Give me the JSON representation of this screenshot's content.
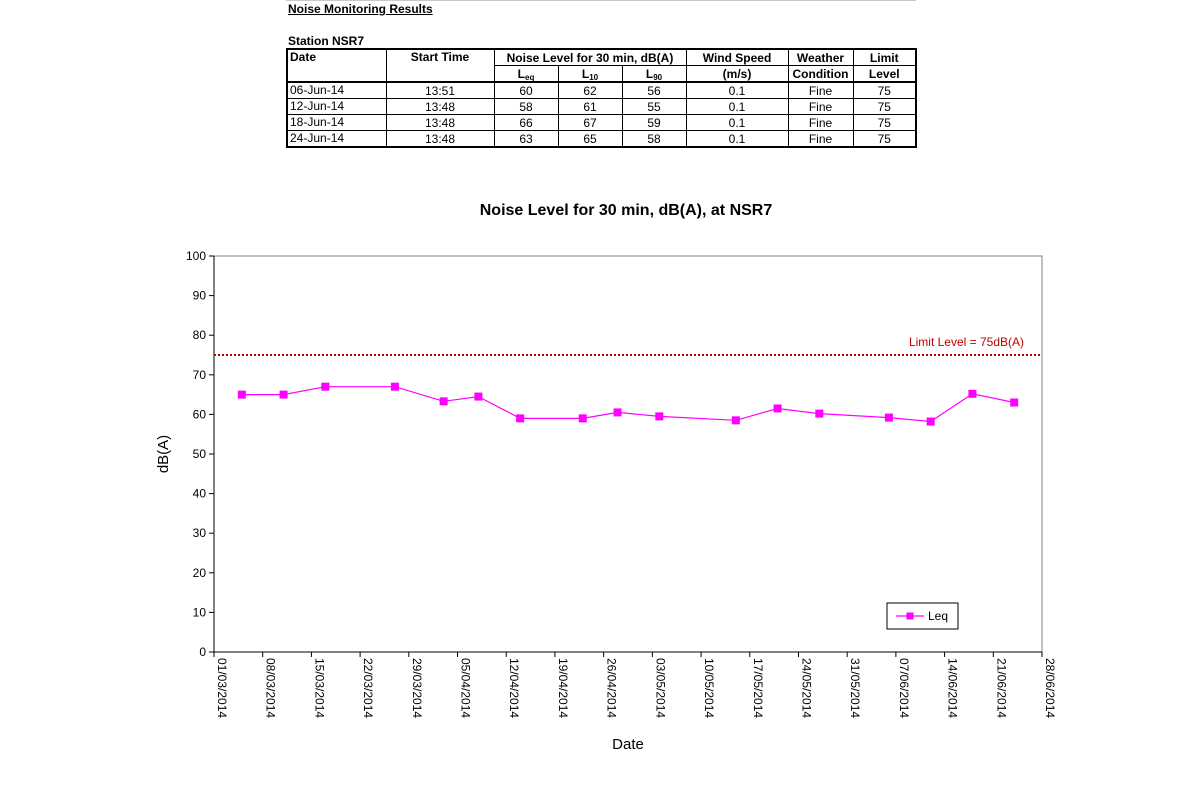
{
  "header": {
    "doc_title": "Noise Monitoring Results",
    "station_label": "Station NSR7"
  },
  "table": {
    "col_date": "Date",
    "col_start": "Start Time",
    "col_noise": "Noise Level for 30 min, dB(A)",
    "sub_leq_main": "L",
    "sub_leq_sub": "eq",
    "sub_l10_main": "L",
    "sub_l10_sub": "10",
    "sub_l90_main": "L",
    "sub_l90_sub": "90",
    "col_wind_1": "Wind Speed",
    "col_wind_2": "(m/s)",
    "col_weather_1": "Weather",
    "col_weather_2": "Condition",
    "col_limit_1": "Limit",
    "col_limit_2": "Level",
    "rows": [
      {
        "date": "06-Jun-14",
        "start": "13:51",
        "leq": "60",
        "l10": "62",
        "l90": "56",
        "wind": "0.1",
        "weather": "Fine",
        "limit": "75"
      },
      {
        "date": "12-Jun-14",
        "start": "13:48",
        "leq": "58",
        "l10": "61",
        "l90": "55",
        "wind": "0.1",
        "weather": "Fine",
        "limit": "75"
      },
      {
        "date": "18-Jun-14",
        "start": "13:48",
        "leq": "66",
        "l10": "67",
        "l90": "59",
        "wind": "0.1",
        "weather": "Fine",
        "limit": "75"
      },
      {
        "date": "24-Jun-14",
        "start": "13:48",
        "leq": "63",
        "l10": "65",
        "l90": "58",
        "wind": "0.1",
        "weather": "Fine",
        "limit": "75"
      }
    ]
  },
  "chart_data": {
    "type": "line",
    "title": "Noise Level for 30 min, dB(A), at NSR7",
    "xlabel": "Date",
    "ylabel": "dB(A)",
    "ylim": [
      0,
      100
    ],
    "yticks": [
      0,
      10,
      20,
      30,
      40,
      50,
      60,
      70,
      80,
      90,
      100
    ],
    "xlim": [
      "2014-03-01",
      "2014-06-28"
    ],
    "xtick_labels": [
      "01/03/2014",
      "08/03/2014",
      "15/03/2014",
      "22/03/2014",
      "29/03/2014",
      "05/04/2014",
      "12/04/2014",
      "19/04/2014",
      "26/04/2014",
      "03/05/2014",
      "10/05/2014",
      "17/05/2014",
      "24/05/2014",
      "31/05/2014",
      "07/06/2014",
      "14/06/2014",
      "21/06/2014",
      "28/06/2014"
    ],
    "grid": false,
    "legend_position": "bottom-right",
    "series": [
      {
        "name": "Leq",
        "color": "#ff00ff",
        "x": [
          "2014-03-05",
          "2014-03-11",
          "2014-03-17",
          "2014-03-27",
          "2014-04-03",
          "2014-04-08",
          "2014-04-14",
          "2014-04-23",
          "2014-04-28",
          "2014-05-04",
          "2014-05-15",
          "2014-05-21",
          "2014-05-27",
          "2014-06-06",
          "2014-06-12",
          "2014-06-18",
          "2014-06-24"
        ],
        "y": [
          65,
          65,
          67,
          67,
          63.3,
          64.5,
          59,
          59,
          60.5,
          59.5,
          58.5,
          61.5,
          60.2,
          59.2,
          58.2,
          65.2,
          63
        ]
      }
    ],
    "limit_line": {
      "value": 75,
      "label": "Limit Level  = 75dB(A)",
      "color": "#c00000"
    }
  }
}
